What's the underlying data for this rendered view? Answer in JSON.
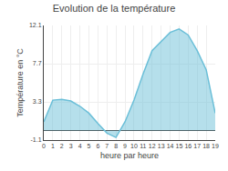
{
  "chart_data": {
    "type": "area",
    "title": "Evolution de la température",
    "xlabel": "heure par heure",
    "ylabel": "Température en °C",
    "x": [
      0,
      1,
      2,
      3,
      4,
      5,
      6,
      7,
      8,
      9,
      10,
      11,
      12,
      13,
      14,
      15,
      16,
      17,
      18,
      19
    ],
    "values": [
      1.0,
      3.5,
      3.6,
      3.4,
      2.8,
      2.0,
      0.8,
      -0.3,
      -0.8,
      1.0,
      3.5,
      6.5,
      9.2,
      10.3,
      11.3,
      11.7,
      11.0,
      9.2,
      7.0,
      2.0
    ],
    "color": "#6bbfd8",
    "xlim": [
      0,
      19
    ],
    "xticks": [
      0,
      1,
      2,
      3,
      4,
      5,
      6,
      7,
      8,
      9,
      10,
      11,
      12,
      13,
      14,
      15,
      16,
      17,
      18,
      19
    ],
    "ylim": [
      -1.1,
      12.1
    ],
    "yticks": [
      -1.1,
      3.3,
      7.7,
      12.1
    ],
    "grid": true
  }
}
